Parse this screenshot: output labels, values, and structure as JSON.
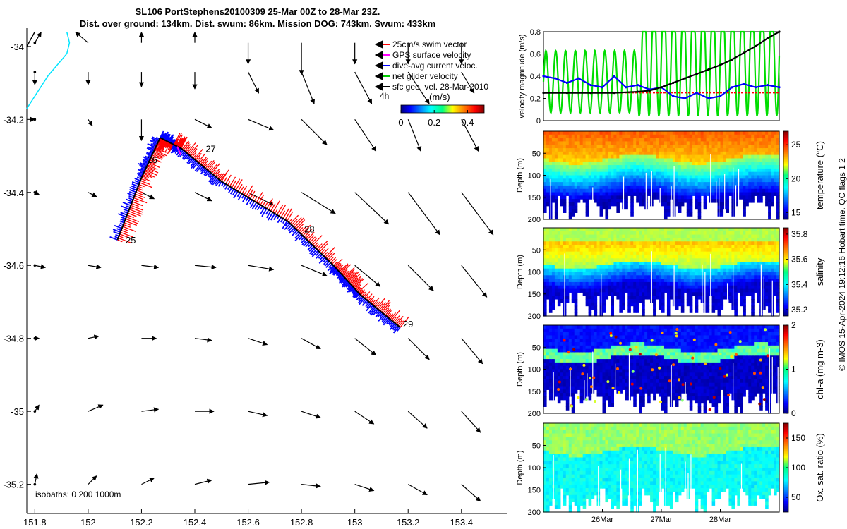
{
  "title_line1": "SL106 PortStephens20100309 25-Mar 00Z to 28-Mar 23Z.",
  "title_line2": "Dist. over ground: 134km. Dist. swum: 86km. Mission DOG: 743km. Swum: 433km",
  "side_note": "© IMOS 15-Apr-2024 19:12:16 Hobart time. QC flags 1  2",
  "colors": {
    "swim_vector": "#ff0000",
    "gps_velocity": "#ff00ff",
    "dive_avg": "#0000ff",
    "net_glider": "#00cc00",
    "sfc_geo": "#000000",
    "coast": "#00e5ff",
    "track_blue": "#0000ff",
    "track_red": "#ff0000"
  },
  "chart_data": [
    {
      "type": "line",
      "id": "map",
      "xlim": [
        151.77,
        153.57
      ],
      "ylim": [
        -35.28,
        -33.95
      ],
      "xticks": [
        "151.8",
        "152",
        "152.2",
        "152.4",
        "152.6",
        "152.8",
        "153",
        "153.2",
        "153.4"
      ],
      "xtick_values": [
        151.8,
        152.0,
        152.2,
        152.4,
        152.6,
        152.8,
        153.0,
        153.2,
        153.4
      ],
      "yticks": [
        "-34",
        "-34.2",
        "-34.4",
        "-34.6",
        "-34.8",
        "-35",
        "-35.2"
      ],
      "ytick_values": [
        -34.0,
        -34.2,
        -34.4,
        -34.6,
        -34.8,
        -35.0,
        -35.2
      ],
      "legend": [
        {
          "label": "25cm/s swim vector",
          "color": "#ff0000"
        },
        {
          "label": "GPS surface velocity",
          "color": "#ff00ff"
        },
        {
          "label": "dive-avg current veloc.",
          "color": "#0000ff"
        },
        {
          "label": "net glider velocity",
          "color": "#00cc00"
        },
        {
          "label": "sfc geo. vel. 28-Mar-2010",
          "color": "#000000"
        }
      ],
      "colorbar_caption": "4h",
      "colorbar_unit": "(m/s)",
      "colorbar_ticks": [
        "0",
        "0.2",
        "0.4"
      ],
      "colorbar_tick_values": [
        0,
        0.2,
        0.4
      ],
      "colorbar_range": [
        0,
        0.5
      ],
      "isobath_label": "isobaths: 0   200  1000m",
      "track": [
        [
          152.11,
          -34.53
        ],
        [
          152.2,
          -34.36
        ],
        [
          152.27,
          -34.25
        ],
        [
          152.35,
          -34.28
        ],
        [
          152.5,
          -34.37
        ],
        [
          152.75,
          -34.48
        ],
        [
          152.92,
          -34.6
        ],
        [
          153.02,
          -34.68
        ],
        [
          153.17,
          -34.77
        ]
      ],
      "day_labels": [
        {
          "label": "25",
          "lon": 152.13,
          "lat": -34.53
        },
        {
          "label": "26",
          "lon": 152.21,
          "lat": -34.31
        },
        {
          "label": "27",
          "lon": 152.43,
          "lat": -34.28
        },
        {
          "label": "28",
          "lon": 152.8,
          "lat": -34.5
        },
        {
          "label": "29",
          "lon": 153.17,
          "lat": -34.76
        }
      ],
      "coast": [
        [
          151.92,
          -33.96
        ],
        [
          151.93,
          -33.99
        ],
        [
          151.92,
          -34.02
        ],
        [
          151.85,
          -34.08
        ],
        [
          151.77,
          -34.17
        ]
      ],
      "coast_edge": [
        [
          151.8,
          -33.96
        ],
        [
          151.77,
          -34.0
        ]
      ],
      "sfc_geo_grid": {
        "lons": [
          151.8,
          152.0,
          152.2,
          152.4,
          152.6,
          152.8,
          153.0,
          153.2,
          153.4
        ],
        "lats": [
          -33.99,
          -34.07,
          -34.2,
          -34.4,
          -34.6,
          -34.8,
          -35.0,
          -35.2
        ],
        "u": [
          [
            0.03,
            -0.06,
            0.0,
            0.0,
            0.0,
            0.0,
            0.0,
            0.0,
            0.0
          ],
          [
            0.0,
            0.0,
            0.0,
            0.0,
            0.05,
            0.06,
            0.08,
            0.1,
            0.06
          ],
          [
            0.0,
            0.02,
            0.0,
            0.08,
            0.12,
            0.12,
            0.1,
            0.06,
            0.08
          ],
          [
            0.02,
            0.04,
            0.06,
            0.08,
            0.12,
            0.16,
            0.16,
            0.15,
            0.15
          ],
          [
            0.05,
            0.06,
            0.08,
            0.1,
            0.12,
            0.12,
            0.12,
            0.12,
            0.12
          ],
          [
            0.02,
            0.05,
            0.07,
            0.08,
            0.09,
            0.09,
            0.1,
            0.1,
            0.1
          ],
          [
            0.02,
            0.07,
            0.08,
            0.09,
            0.09,
            0.09,
            0.09,
            0.09,
            0.09
          ],
          [
            0.01,
            0.04,
            0.06,
            0.08,
            0.1,
            0.09,
            0.09,
            0.09,
            0.09
          ]
        ],
        "v": [
          [
            0.05,
            0.05,
            0.05,
            0.05,
            -0.1,
            -0.15,
            -0.1,
            -0.1,
            -0.1
          ],
          [
            -0.06,
            -0.06,
            -0.07,
            -0.08,
            -0.1,
            -0.15,
            -0.15,
            -0.15,
            -0.1
          ],
          [
            0.0,
            -0.03,
            -0.1,
            -0.04,
            -0.05,
            -0.12,
            -0.15,
            -0.15,
            -0.15
          ],
          [
            -0.01,
            -0.02,
            -0.03,
            -0.04,
            -0.06,
            -0.1,
            -0.15,
            -0.2,
            -0.2
          ],
          [
            -0.01,
            -0.01,
            -0.01,
            -0.01,
            -0.02,
            -0.05,
            -0.1,
            -0.12,
            -0.15
          ],
          [
            0.0,
            0.01,
            0.0,
            -0.01,
            -0.03,
            -0.05,
            -0.08,
            -0.1,
            -0.12
          ],
          [
            0.03,
            0.03,
            0.01,
            0.0,
            -0.02,
            -0.03,
            -0.06,
            -0.08,
            -0.1
          ],
          [
            0.05,
            0.04,
            0.03,
            0.02,
            0.01,
            -0.01,
            -0.03,
            -0.05,
            -0.08
          ]
        ]
      }
    },
    {
      "type": "line",
      "id": "velocity",
      "ylabel": "velocity magnitude (m/s)",
      "ylim": [
        0,
        0.8
      ],
      "yticks": [
        "0",
        "0.2",
        "0.4",
        "0.6",
        "0.8"
      ],
      "ytick_values": [
        0,
        0.2,
        0.4,
        0.6,
        0.8
      ],
      "xlim": [
        0,
        1
      ],
      "series": [
        {
          "color": "#00dd00",
          "note": "oscillating",
          "x": [
            0,
            0.05,
            0.1,
            0.15,
            0.2,
            0.25,
            0.3,
            0.35,
            0.4,
            0.45,
            0.5,
            0.55,
            0.6,
            0.65,
            0.7,
            0.75,
            0.8,
            0.85,
            0.9,
            0.95,
            1.0
          ]
        },
        {
          "color": "#0000ff",
          "x": [
            0,
            0.05,
            0.1,
            0.15,
            0.2,
            0.25,
            0.3,
            0.35,
            0.4,
            0.45,
            0.5,
            0.55,
            0.6,
            0.65,
            0.7,
            0.75,
            0.8,
            0.85,
            0.9,
            0.95,
            1.0
          ],
          "y": [
            0.4,
            0.38,
            0.34,
            0.38,
            0.32,
            0.3,
            0.4,
            0.3,
            0.32,
            0.28,
            0.3,
            0.22,
            0.2,
            0.25,
            0.2,
            0.22,
            0.3,
            0.33,
            0.3,
            0.32,
            0.3
          ]
        },
        {
          "color": "#000000",
          "x": [
            0,
            0.1,
            0.2,
            0.3,
            0.4,
            0.45,
            0.5,
            0.55,
            0.6,
            0.65,
            0.7,
            0.75,
            0.8,
            0.85,
            0.9,
            0.95,
            1.0
          ],
          "y": [
            0.25,
            0.25,
            0.25,
            0.25,
            0.26,
            0.27,
            0.3,
            0.34,
            0.38,
            0.42,
            0.46,
            0.5,
            0.55,
            0.61,
            0.67,
            0.74,
            0.8
          ]
        },
        {
          "color": "#ff0000",
          "x": [
            0,
            1
          ],
          "y": [
            0.25,
            0.25
          ]
        }
      ]
    },
    {
      "type": "heatmap",
      "id": "temperature",
      "ylabel": "Depth (m)",
      "clabel": "temperature (°C)",
      "yticks": [
        "50",
        "100",
        "150",
        "200"
      ],
      "ytick_values": [
        50,
        100,
        150,
        200
      ],
      "ylim": [
        0,
        200
      ],
      "cticks": [
        "15",
        "20",
        "25"
      ],
      "ctick_values": [
        15,
        20,
        25
      ],
      "crange": [
        14,
        27
      ]
    },
    {
      "type": "heatmap",
      "id": "salinity",
      "ylabel": "Depth (m)",
      "clabel": "salinity",
      "yticks": [
        "50",
        "100",
        "150",
        "200"
      ],
      "ytick_values": [
        50,
        100,
        150,
        200
      ],
      "ylim": [
        0,
        200
      ],
      "cticks": [
        "35.2",
        "35.4",
        "35.6",
        "35.8"
      ],
      "ctick_values": [
        35.2,
        35.4,
        35.6,
        35.8
      ],
      "crange": [
        35.15,
        35.85
      ]
    },
    {
      "type": "heatmap",
      "id": "chla",
      "ylabel": "Depth (m)",
      "clabel": "chl-a (mg m-3)",
      "yticks": [
        "50",
        "100",
        "150",
        "200"
      ],
      "ytick_values": [
        50,
        100,
        150,
        200
      ],
      "ylim": [
        0,
        200
      ],
      "cticks": [
        "0",
        "1",
        "2"
      ],
      "ctick_values": [
        0,
        1,
        2
      ],
      "crange": [
        0,
        2
      ]
    },
    {
      "type": "heatmap",
      "id": "oxygen",
      "ylabel": "Depth (m)",
      "clabel": "Ox. sat. ratio (%)",
      "yticks": [
        "50",
        "100",
        "150",
        "200"
      ],
      "ytick_values": [
        50,
        100,
        150,
        200
      ],
      "ylim": [
        0,
        200
      ],
      "cticks": [
        "50",
        "100",
        "150"
      ],
      "ctick_values": [
        50,
        100,
        150
      ],
      "crange": [
        25,
        175
      ],
      "xticks": [
        "26Mar",
        "27Mar",
        "28Mar"
      ],
      "xtick_values": [
        0.25,
        0.5,
        0.75
      ]
    }
  ]
}
